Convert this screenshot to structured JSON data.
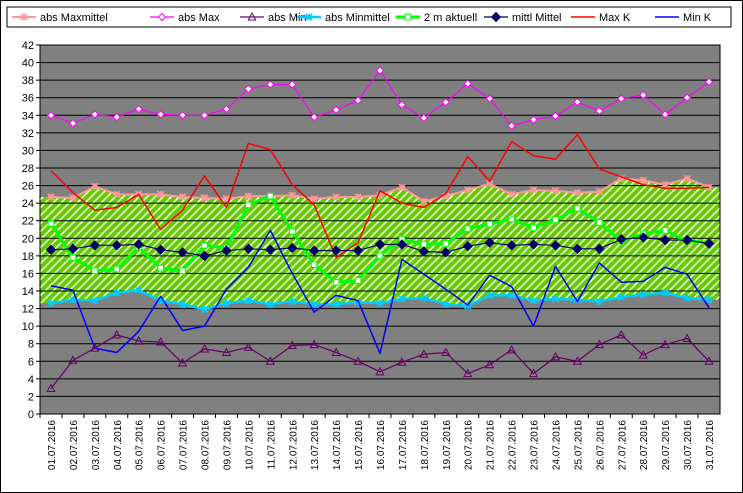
{
  "chart_data": {
    "type": "line",
    "title": "",
    "xlabel": "",
    "ylabel": "",
    "ylim": [
      0,
      42
    ],
    "ytick_step": 2,
    "grid": true,
    "plot_background": "#808080",
    "gridline_color": "#000000",
    "legend_position": "top",
    "categories": [
      "01.07.2016",
      "02.07.2016",
      "03.07.2016",
      "04.07.2016",
      "05.07.2016",
      "06.07.2016",
      "07.07.2016",
      "08.07.2016",
      "09.07.2016",
      "10.07.2016",
      "11.07.2016",
      "12.07.2016",
      "13.07.2016",
      "14.07.2016",
      "15.07.2016",
      "16.07.2016",
      "17.07.2016",
      "18.07.2016",
      "19.07.2016",
      "20.07.2016",
      "21.07.2016",
      "22.07.2016",
      "23.07.2016",
      "24.07.2016",
      "25.07.2016",
      "26.07.2016",
      "27.07.2016",
      "28.07.2016",
      "29.07.2016",
      "30.07.2016",
      "31.07.2016"
    ],
    "band": {
      "upper_series": "abs Maxmittel",
      "lower_series": "abs Minmittel",
      "fill": "#66cc00",
      "hatch_color": "#ffffff"
    },
    "series": [
      {
        "name": "abs Maxmittel",
        "color": "#ff9999",
        "marker": "star",
        "values": [
          24.7,
          24.6,
          25.9,
          25.0,
          25.0,
          25.0,
          24.7,
          24.6,
          24.5,
          24.8,
          24.8,
          24.9,
          24.5,
          24.7,
          24.7,
          24.9,
          25.8,
          24.2,
          24.8,
          25.5,
          26.2,
          25.0,
          25.5,
          25.4,
          25.2,
          25.3,
          26.8,
          26.6,
          26.1,
          26.8,
          25.8
        ]
      },
      {
        "name": "abs Max",
        "color": "#ff00ff",
        "marker": "diamond-open",
        "values": [
          34.0,
          33.1,
          34.1,
          33.8,
          34.7,
          34.1,
          34.0,
          34.0,
          34.7,
          37.0,
          37.5,
          37.5,
          33.8,
          34.6,
          35.7,
          39.1,
          35.2,
          33.7,
          35.5,
          37.6,
          35.9,
          32.8,
          33.5,
          33.9,
          35.5,
          34.5,
          35.9,
          36.3,
          34.1,
          36.0,
          37.8
        ]
      },
      {
        "name": "abs Min",
        "color": "#660066",
        "marker": "triangle-open",
        "values": [
          2.9,
          6.1,
          7.5,
          9.0,
          8.3,
          8.2,
          5.8,
          7.4,
          7.0,
          7.6,
          6.0,
          7.8,
          7.9,
          7.0,
          6.0,
          4.8,
          5.9,
          6.8,
          7.0,
          4.6,
          5.6,
          7.3,
          4.6,
          6.5,
          6.0,
          7.9,
          9.0,
          6.7,
          7.9,
          8.6,
          6.0
        ]
      },
      {
        "name": "abs Minmittel",
        "color": "#00ccff",
        "marker": "star",
        "values": [
          12.6,
          13.0,
          12.9,
          13.8,
          14.1,
          12.9,
          12.5,
          11.9,
          12.6,
          12.9,
          12.5,
          12.8,
          12.5,
          12.5,
          12.7,
          12.6,
          13.1,
          13.2,
          12.5,
          12.3,
          13.5,
          13.5,
          12.9,
          13.1,
          13.0,
          12.8,
          13.3,
          13.6,
          13.8,
          13.2,
          13.0
        ]
      },
      {
        "name": "2 m aktuell",
        "color": "#00ff00",
        "marker": "square-open",
        "values": [
          21.7,
          17.8,
          16.3,
          16.5,
          19.0,
          16.6,
          16.3,
          19.2,
          18.9,
          23.8,
          24.8,
          20.8,
          17.0,
          15.0,
          15.2,
          18.0,
          19.9,
          19.3,
          19.4,
          21.1,
          21.6,
          22.2,
          21.2,
          22.1,
          23.4,
          21.8,
          19.7,
          20.5,
          20.9,
          19.7,
          19.5
        ]
      },
      {
        "name": "mittl Mittel",
        "color": "#000066",
        "marker": "diamond-filled",
        "values": [
          18.7,
          18.8,
          19.2,
          19.2,
          19.3,
          18.7,
          18.4,
          18.0,
          18.6,
          18.8,
          18.7,
          18.9,
          18.6,
          18.6,
          18.6,
          19.3,
          19.3,
          18.5,
          18.4,
          19.1,
          19.5,
          19.2,
          19.3,
          19.2,
          18.8,
          18.8,
          19.9,
          20.1,
          19.8,
          19.8,
          19.4
        ]
      },
      {
        "name": "Max K",
        "color": "#ff0000",
        "marker": "none",
        "values": [
          27.7,
          25.2,
          23.2,
          23.5,
          25.0,
          21.0,
          23.2,
          27.1,
          23.5,
          30.8,
          30.1,
          26.1,
          23.8,
          17.8,
          19.5,
          25.4,
          24.0,
          23.5,
          25.1,
          29.3,
          26.5,
          31.0,
          29.4,
          29.0,
          31.8,
          27.9,
          27.0,
          26.1,
          25.7,
          25.7,
          25.8
        ]
      },
      {
        "name": "Min K",
        "color": "#0000ff",
        "marker": "none",
        "values": [
          14.6,
          14.1,
          7.5,
          7.0,
          9.4,
          13.4,
          9.5,
          10.0,
          14.2,
          16.7,
          20.9,
          16.0,
          11.6,
          13.5,
          12.9,
          6.9,
          17.6,
          15.9,
          14.2,
          12.4,
          15.8,
          14.5,
          10.0,
          16.8,
          12.8,
          17.2,
          15.0,
          15.1,
          16.7,
          15.9,
          12.1
        ]
      }
    ]
  }
}
